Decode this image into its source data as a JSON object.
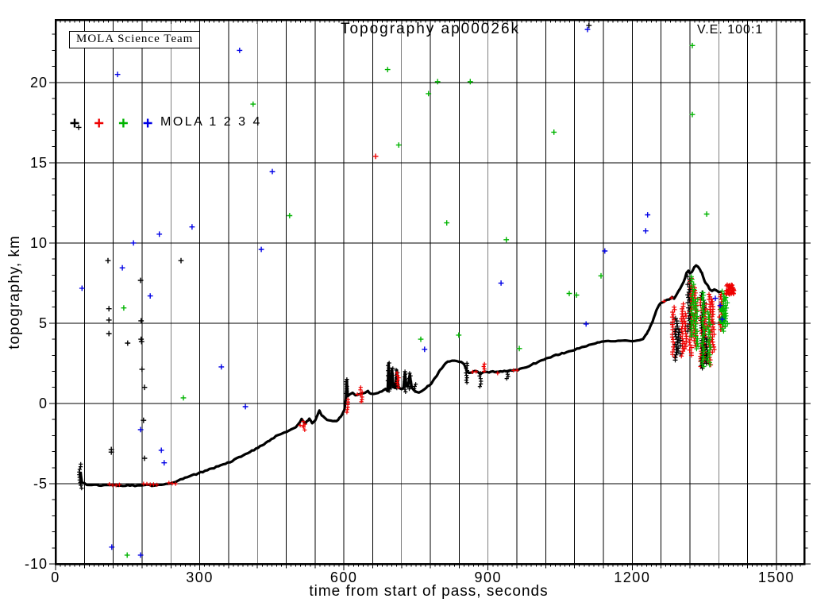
{
  "title": "Topography ap00026k",
  "annotations": {
    "team_box": "MOLA Science Team",
    "ve": "V.E. 100:1"
  },
  "legend": {
    "label": "MOLA 1 2 3 4",
    "entries": [
      {
        "name": "MOLA 1",
        "color": "#000000"
      },
      {
        "name": "MOLA 2",
        "color": "#ee0000"
      },
      {
        "name": "MOLA 3",
        "color": "#00b400"
      },
      {
        "name": "MOLA 4",
        "color": "#0000e6"
      }
    ]
  },
  "colors": {
    "k": "#000000",
    "r": "#ee0000",
    "g": "#00b400",
    "b": "#0000e6",
    "grid": "#000000"
  },
  "axes": {
    "x": {
      "label": "time from start of pass, seconds",
      "min": 0,
      "max": 1558,
      "grid_step": 60,
      "major_step": 300,
      "minor_step": 10,
      "tick_labels": [
        0,
        300,
        600,
        900,
        1200,
        1500
      ]
    },
    "y": {
      "label": "topography, km",
      "min": -10,
      "max": 23.9,
      "grid_step": 5,
      "major_step": 5,
      "minor_step": 1,
      "tick_labels": [
        -10,
        -5,
        0,
        5,
        10,
        15,
        20
      ]
    }
  },
  "chart_data": {
    "type": "scatter",
    "title": "Topography ap00026k",
    "xlabel": "time from start of pass, seconds",
    "ylabel": "topography, km",
    "xlim": [
      0,
      1558
    ],
    "ylim": [
      -10,
      23.9
    ],
    "grid": true,
    "legend_position": "top-left",
    "marker": "plus",
    "series_names": [
      "MOLA 1",
      "MOLA 2",
      "MOLA 3",
      "MOLA 4"
    ],
    "track": [
      [
        52,
        -4.3
      ],
      [
        55,
        -4.95
      ],
      [
        70,
        -5.08
      ],
      [
        110,
        -5.1
      ],
      [
        150,
        -5.12
      ],
      [
        200,
        -5.1
      ],
      [
        240,
        -5.0
      ],
      [
        265,
        -4.7
      ],
      [
        297,
        -4.35
      ],
      [
        325,
        -4.05
      ],
      [
        363,
        -3.65
      ],
      [
        400,
        -3.1
      ],
      [
        430,
        -2.6
      ],
      [
        445,
        -2.3
      ],
      [
        463,
        -1.95
      ],
      [
        485,
        -1.7
      ],
      [
        500,
        -1.5
      ],
      [
        512,
        -1.0
      ],
      [
        520,
        -1.25
      ],
      [
        528,
        -0.95
      ],
      [
        534,
        -1.2
      ],
      [
        540,
        -1.1
      ],
      [
        549,
        -0.45
      ],
      [
        552,
        -0.62
      ],
      [
        556,
        -0.82
      ],
      [
        565,
        -1.0
      ],
      [
        573,
        -1.1
      ],
      [
        581,
        -1.12
      ],
      [
        588,
        -1.03
      ],
      [
        596,
        -0.72
      ],
      [
        601,
        -0.4
      ],
      [
        604,
        0.25
      ],
      [
        606,
        1.45
      ],
      [
        608,
        0.45
      ],
      [
        612,
        0.55
      ],
      [
        618,
        0.65
      ],
      [
        624,
        0.5
      ],
      [
        630,
        0.55
      ],
      [
        637,
        0.6
      ],
      [
        644,
        0.65
      ],
      [
        650,
        0.75
      ],
      [
        656,
        0.6
      ],
      [
        662,
        0.55
      ],
      [
        668,
        0.62
      ],
      [
        675,
        0.7
      ],
      [
        682,
        0.85
      ],
      [
        687,
        0.95
      ],
      [
        691,
        0.75
      ],
      [
        693,
        2.55
      ],
      [
        695,
        0.9
      ],
      [
        698,
        1.1
      ],
      [
        700,
        2.2
      ],
      [
        703,
        1.0
      ],
      [
        707,
        0.95
      ],
      [
        710,
        2.1
      ],
      [
        713,
        1.1
      ],
      [
        716,
        0.95
      ],
      [
        720,
        0.85
      ],
      [
        724,
        1.0
      ],
      [
        727,
        1.95
      ],
      [
        730,
        1.1
      ],
      [
        733,
        1.0
      ],
      [
        737,
        1.85
      ],
      [
        741,
        1.0
      ],
      [
        745,
        0.85
      ],
      [
        750,
        0.72
      ],
      [
        756,
        0.68
      ],
      [
        762,
        0.78
      ],
      [
        768,
        0.9
      ],
      [
        774,
        1.05
      ],
      [
        780,
        1.2
      ],
      [
        788,
        1.5
      ],
      [
        795,
        1.85
      ],
      [
        803,
        2.2
      ],
      [
        812,
        2.5
      ],
      [
        820,
        2.65
      ],
      [
        830,
        2.7
      ],
      [
        840,
        2.62
      ],
      [
        848,
        2.5
      ],
      [
        852,
        2.3
      ],
      [
        856,
        2.0
      ],
      [
        860,
        1.92
      ],
      [
        866,
        1.95
      ],
      [
        872,
        2.0
      ],
      [
        878,
        1.98
      ],
      [
        884,
        1.85
      ],
      [
        888,
        1.92
      ],
      [
        895,
        2.0
      ],
      [
        902,
        1.95
      ],
      [
        910,
        1.98
      ],
      [
        918,
        1.95
      ],
      [
        926,
        1.98
      ],
      [
        934,
        2.0
      ],
      [
        942,
        2.02
      ],
      [
        950,
        2.05
      ],
      [
        958,
        2.08
      ],
      [
        966,
        2.12
      ],
      [
        975,
        2.2
      ],
      [
        990,
        2.4
      ],
      [
        1008,
        2.62
      ],
      [
        1025,
        2.82
      ],
      [
        1041,
        3.0
      ],
      [
        1058,
        3.15
      ],
      [
        1074,
        3.3
      ],
      [
        1090,
        3.45
      ],
      [
        1105,
        3.58
      ],
      [
        1120,
        3.72
      ],
      [
        1132,
        3.82
      ],
      [
        1145,
        3.88
      ],
      [
        1165,
        3.9
      ],
      [
        1185,
        3.9
      ],
      [
        1205,
        3.92
      ],
      [
        1220,
        3.95
      ],
      [
        1228,
        4.25
      ],
      [
        1235,
        4.6
      ],
      [
        1241,
        5.0
      ],
      [
        1246,
        5.45
      ],
      [
        1251,
        5.85
      ],
      [
        1256,
        6.15
      ],
      [
        1262,
        6.3
      ],
      [
        1269,
        6.38
      ],
      [
        1277,
        6.5
      ],
      [
        1283,
        6.62
      ],
      [
        1287,
        6.55
      ],
      [
        1293,
        6.85
      ],
      [
        1300,
        7.15
      ],
      [
        1307,
        7.6
      ],
      [
        1313,
        8.1
      ],
      [
        1317,
        8.25
      ],
      [
        1320,
        8.1
      ],
      [
        1324,
        8.2
      ],
      [
        1329,
        8.5
      ],
      [
        1333,
        8.62
      ],
      [
        1337,
        8.5
      ],
      [
        1341,
        8.35
      ],
      [
        1345,
        8.1
      ],
      [
        1349,
        7.75
      ],
      [
        1353,
        7.5
      ],
      [
        1358,
        7.3
      ],
      [
        1362,
        7.1
      ],
      [
        1366,
        7.0
      ],
      [
        1371,
        7.1
      ],
      [
        1376,
        7.0
      ],
      [
        1380,
        6.9
      ],
      [
        1386,
        6.95
      ],
      [
        1391,
        7.05
      ]
    ],
    "track_spikes": [
      [
        51,
        -5.1,
        -3.78,
        "k"
      ],
      [
        53,
        -5.28,
        -4.9,
        "k"
      ],
      [
        517,
        -1.65,
        -1.12,
        "r"
      ],
      [
        606,
        0.62,
        1.5,
        "k"
      ],
      [
        607,
        -0.55,
        0.25,
        "r"
      ],
      [
        636,
        0.1,
        1.0,
        "r"
      ],
      [
        693,
        0.78,
        2.52,
        "k"
      ],
      [
        700,
        0.97,
        2.18,
        "k"
      ],
      [
        710,
        0.95,
        2.08,
        "k"
      ],
      [
        712,
        1.0,
        1.9,
        "r"
      ],
      [
        727,
        0.72,
        1.98,
        "k"
      ],
      [
        737,
        0.9,
        1.88,
        "k"
      ],
      [
        748,
        0.78,
        1.2,
        "k"
      ],
      [
        855,
        1.3,
        2.5,
        "k"
      ],
      [
        884,
        1.05,
        1.88,
        "k"
      ],
      [
        892,
        2.0,
        2.45,
        "r"
      ],
      [
        940,
        1.55,
        1.95,
        "k"
      ]
    ],
    "red_runs": [
      [
        112,
        135,
        -5.07
      ],
      [
        183,
        215,
        -5.02
      ],
      [
        236,
        253,
        -4.97
      ],
      [
        509,
        521,
        -1.4
      ],
      [
        628,
        640,
        0.55
      ],
      [
        868,
        876,
        1.95
      ],
      [
        920,
        925,
        1.9
      ],
      [
        953,
        958,
        2.02
      ],
      [
        960,
        965,
        2.1
      ],
      [
        1266,
        1272,
        6.32
      ],
      [
        1282,
        1287,
        6.58
      ]
    ],
    "noise_columns": [
      {
        "t": 1286,
        "z1": 2.9,
        "z2": 6.0,
        "c": "r"
      },
      {
        "t": 1304,
        "z1": 2.95,
        "z2": 6.2,
        "c": "r"
      },
      {
        "t": 1310,
        "z1": 3.4,
        "z2": 5.6,
        "c": "r"
      },
      {
        "t": 1322,
        "z1": 3.0,
        "z2": 7.8,
        "c": "r"
      },
      {
        "t": 1330,
        "z1": 3.6,
        "z2": 7.2,
        "c": "r"
      },
      {
        "t": 1345,
        "z1": 2.3,
        "z2": 6.6,
        "c": "r"
      },
      {
        "t": 1352,
        "z1": 2.6,
        "z2": 6.2,
        "c": "r"
      },
      {
        "t": 1362,
        "z1": 2.4,
        "z2": 6.8,
        "c": "r"
      },
      {
        "t": 1368,
        "z1": 3.2,
        "z2": 6.5,
        "c": "r"
      },
      {
        "t": 1384,
        "z1": 4.6,
        "z2": 6.8,
        "c": "r"
      },
      {
        "t": 1292,
        "z1": 2.7,
        "z2": 5.3,
        "c": "k"
      },
      {
        "t": 1297,
        "z1": 3.1,
        "z2": 4.6,
        "c": "k"
      },
      {
        "t": 1318,
        "z1": 4.5,
        "z2": 7.9,
        "c": "k"
      },
      {
        "t": 1347,
        "z1": 2.2,
        "z2": 6.9,
        "c": "k"
      },
      {
        "t": 1356,
        "z1": 2.5,
        "z2": 4.0,
        "c": "k"
      },
      {
        "t": 1326,
        "z1": 4.2,
        "z2": 7.9,
        "c": "g"
      },
      {
        "t": 1334,
        "z1": 3.4,
        "z2": 6.5,
        "c": "g"
      },
      {
        "t": 1348,
        "z1": 2.3,
        "z2": 6.9,
        "c": "g"
      },
      {
        "t": 1360,
        "z1": 2.4,
        "z2": 5.7,
        "c": "g"
      },
      {
        "t": 1390,
        "z1": 4.5,
        "z2": 7.0,
        "c": "g"
      },
      {
        "t": 1396,
        "z1": 4.8,
        "z2": 6.6,
        "c": "g"
      }
    ],
    "noise_blobs": [
      {
        "t": 1404,
        "z": 7.1,
        "dt": 8,
        "dz": 0.32,
        "c": "r",
        "n": 42
      },
      {
        "t": 1388,
        "z": 5.45,
        "dt": 4,
        "dz": 0.5,
        "c": "g",
        "n": 30
      }
    ],
    "scatter_points": [
      [
        383,
        22.0,
        "b"
      ],
      [
        129,
        20.5,
        "b"
      ],
      [
        691,
        20.8,
        "g"
      ],
      [
        776,
        19.3,
        "g"
      ],
      [
        795,
        20.05,
        "g"
      ],
      [
        411,
        18.65,
        "g"
      ],
      [
        48,
        17.2,
        "k"
      ],
      [
        714,
        16.1,
        "g"
      ],
      [
        666,
        15.4,
        "r"
      ],
      [
        451,
        14.45,
        "b"
      ],
      [
        487,
        11.7,
        "g"
      ],
      [
        284,
        11.0,
        "b"
      ],
      [
        216,
        10.55,
        "b"
      ],
      [
        162,
        10.0,
        "b"
      ],
      [
        109,
        8.9,
        "k"
      ],
      [
        261,
        8.9,
        "k"
      ],
      [
        428,
        9.6,
        "b"
      ],
      [
        139,
        8.45,
        "b"
      ],
      [
        177,
        7.67,
        "k"
      ],
      [
        55,
        7.18,
        "b"
      ],
      [
        1107,
        23.3,
        "b"
      ],
      [
        1110,
        23.55,
        "k"
      ],
      [
        1325,
        22.3,
        "g"
      ],
      [
        863,
        20.05,
        "g"
      ],
      [
        1325,
        18.0,
        "g"
      ],
      [
        1037,
        16.9,
        "g"
      ],
      [
        814,
        11.25,
        "g"
      ],
      [
        1232,
        11.75,
        "b"
      ],
      [
        1355,
        11.8,
        "g"
      ],
      [
        1228,
        10.75,
        "b"
      ],
      [
        938,
        10.2,
        "g"
      ],
      [
        1143,
        9.5,
        "b"
      ],
      [
        927,
        7.5,
        "b"
      ],
      [
        1135,
        7.95,
        "g"
      ],
      [
        1069,
        6.85,
        "g"
      ],
      [
        1084,
        6.75,
        "g"
      ],
      [
        197,
        6.7,
        "b"
      ],
      [
        111,
        5.9,
        "k"
      ],
      [
        142,
        5.95,
        "g"
      ],
      [
        111,
        5.2,
        "k"
      ],
      [
        178,
        5.15,
        "k"
      ],
      [
        111,
        4.35,
        "k"
      ],
      [
        150,
        3.76,
        "k"
      ],
      [
        178,
        4.0,
        "k"
      ],
      [
        179,
        3.85,
        "k"
      ],
      [
        180,
        2.13,
        "k"
      ],
      [
        345,
        2.28,
        "b"
      ],
      [
        185,
        1.0,
        "k"
      ],
      [
        266,
        0.35,
        "g"
      ],
      [
        395,
        -0.2,
        "b"
      ],
      [
        183,
        -1.05,
        "k"
      ],
      [
        177,
        -1.63,
        "b"
      ],
      [
        116,
        -2.87,
        "k"
      ],
      [
        116,
        -3.03,
        "k"
      ],
      [
        220,
        -2.92,
        "b"
      ],
      [
        226,
        -3.7,
        "b"
      ],
      [
        185,
        -3.42,
        "k"
      ],
      [
        117,
        -8.95,
        "b"
      ],
      [
        149,
        -9.45,
        "g"
      ],
      [
        177,
        -9.45,
        "b"
      ],
      [
        760,
        4.0,
        "g"
      ],
      [
        768,
        3.37,
        "b"
      ],
      [
        839,
        4.26,
        "g"
      ],
      [
        965,
        3.42,
        "g"
      ],
      [
        1104,
        4.95,
        "b"
      ],
      [
        1373,
        6.55,
        "b"
      ],
      [
        1383,
        6.1,
        "b"
      ],
      [
        1387,
        5.25,
        "b"
      ]
    ]
  }
}
